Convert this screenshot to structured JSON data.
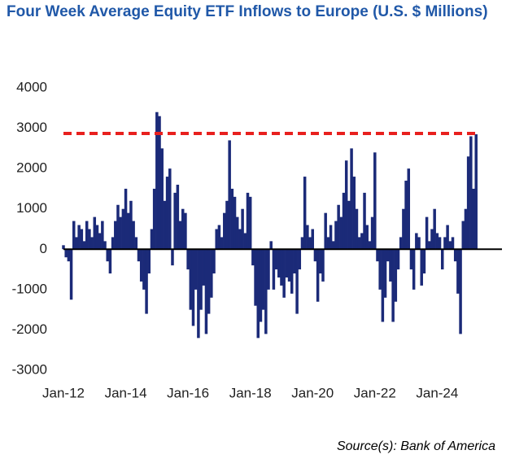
{
  "chart_data": {
    "type": "bar",
    "title": "Four Week Average Equity ETF Inflows to Europe (U.S. $ Millions)",
    "source": "Source(s): Bank of America",
    "color": "#1b2a78",
    "reference_line": {
      "value": 2870,
      "color": "#e8201e"
    },
    "ylim": [
      -3000,
      4000
    ],
    "yticks": [
      -3000,
      -2000,
      -1000,
      0,
      1000,
      2000,
      3000,
      4000
    ],
    "categories": [
      "Jan-12",
      null,
      null,
      null,
      null,
      null,
      null,
      null,
      null,
      null,
      null,
      null,
      null,
      null,
      null,
      null,
      null,
      null,
      null,
      null,
      null,
      null,
      null,
      null,
      "Jan-14",
      null,
      null,
      null,
      null,
      null,
      null,
      null,
      null,
      null,
      null,
      null,
      null,
      null,
      null,
      null,
      null,
      null,
      null,
      null,
      null,
      null,
      null,
      null,
      "Jan-16",
      null,
      null,
      null,
      null,
      null,
      null,
      null,
      null,
      null,
      null,
      null,
      null,
      null,
      null,
      null,
      null,
      null,
      null,
      null,
      null,
      null,
      null,
      null,
      "Jan-18",
      null,
      null,
      null,
      null,
      null,
      null,
      null,
      null,
      null,
      null,
      null,
      null,
      null,
      null,
      null,
      null,
      null,
      null,
      null,
      null,
      null,
      null,
      null,
      "Jan-20",
      null,
      null,
      null,
      null,
      null,
      null,
      null,
      null,
      null,
      null,
      null,
      null,
      null,
      null,
      null,
      null,
      null,
      null,
      null,
      null,
      null,
      null,
      null,
      "Jan-22",
      null,
      null,
      null,
      null,
      null,
      null,
      null,
      null,
      null,
      null,
      null,
      null,
      null,
      null,
      null,
      null,
      null,
      null,
      null,
      null,
      null,
      null,
      null,
      "Jan-24",
      null,
      null,
      null,
      null,
      null,
      null,
      null,
      null,
      null,
      null,
      null,
      null,
      null,
      null,
      null
    ],
    "values": [
      100,
      -200,
      -300,
      -1250,
      700,
      300,
      600,
      500,
      200,
      700,
      500,
      300,
      800,
      600,
      400,
      700,
      200,
      -300,
      -600,
      300,
      700,
      1100,
      800,
      1000,
      1500,
      900,
      1200,
      700,
      300,
      -300,
      -800,
      -1000,
      -1600,
      -600,
      500,
      1500,
      3400,
      3300,
      2500,
      1200,
      1800,
      2000,
      -400,
      1400,
      1600,
      700,
      1000,
      900,
      -500,
      -1500,
      -1900,
      -1000,
      -2200,
      -1500,
      -900,
      -2100,
      -1600,
      -1200,
      -600,
      500,
      600,
      300,
      900,
      1200,
      2700,
      1500,
      1300,
      800,
      500,
      1000,
      400,
      1400,
      1300,
      -400,
      -1400,
      -2200,
      -1800,
      -1500,
      -2100,
      -1000,
      200,
      -1000,
      -500,
      -700,
      -900,
      -1200,
      -700,
      -800,
      -1100,
      -600,
      -1600,
      -500,
      300,
      1800,
      600,
      300,
      500,
      -300,
      -1300,
      -600,
      -800,
      900,
      300,
      600,
      200,
      700,
      1100,
      800,
      1400,
      2200,
      1200,
      2500,
      1800,
      1000,
      300,
      400,
      1400,
      600,
      200,
      800,
      2400,
      -300,
      -1000,
      -1800,
      -1200,
      -300,
      -800,
      -1800,
      -1300,
      -500,
      300,
      1000,
      1700,
      2000,
      -500,
      -1000,
      400,
      300,
      -900,
      -600,
      800,
      200,
      500,
      1000,
      400,
      300,
      -500,
      300,
      600,
      200,
      300,
      -300,
      -1100,
      -2100,
      700,
      1000,
      2300,
      2800,
      1500,
      2850
    ]
  }
}
